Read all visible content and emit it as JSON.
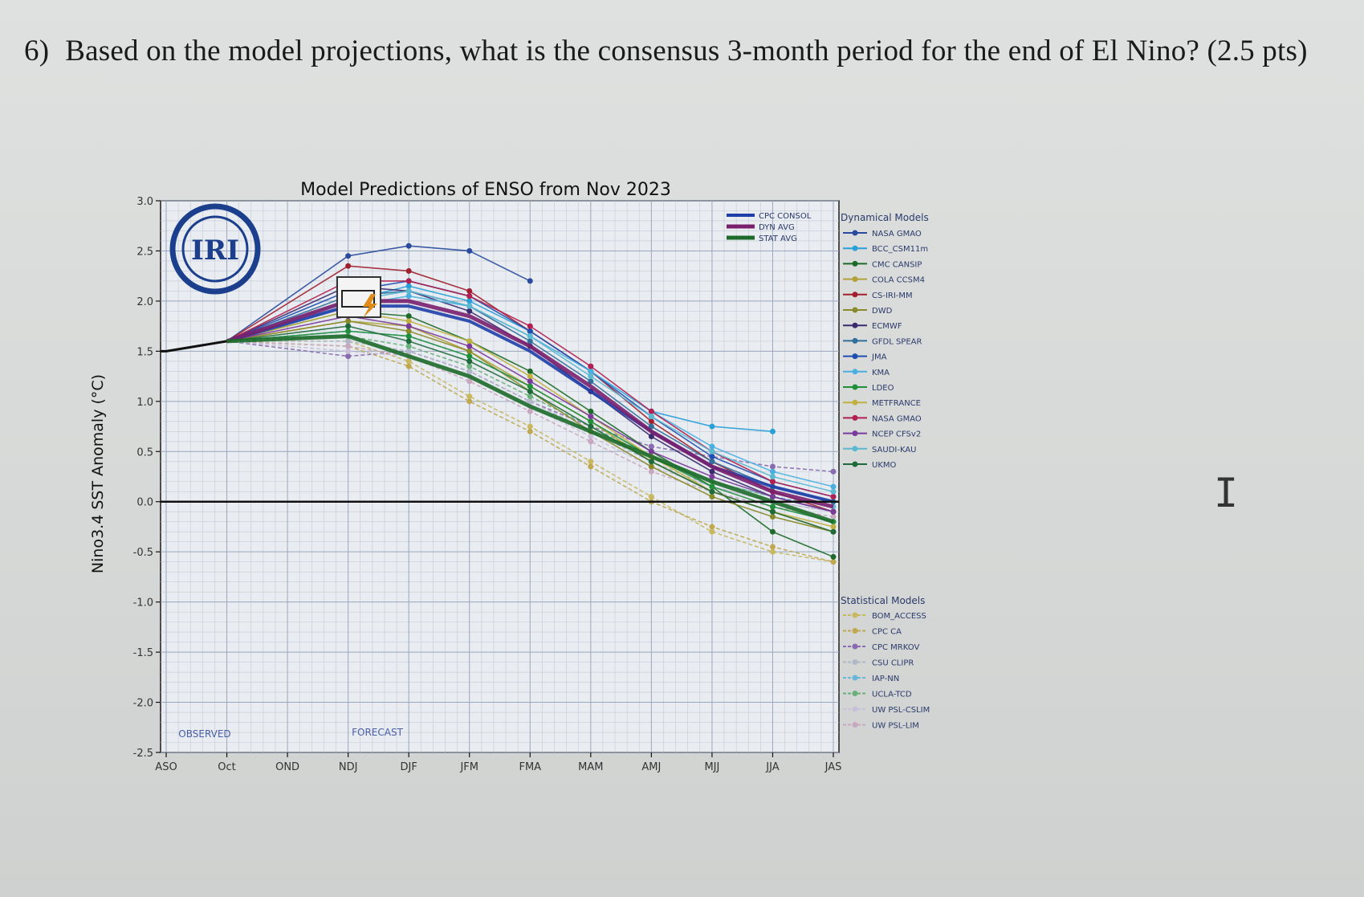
{
  "question": {
    "number": "6)",
    "text": "Based on the model projections, what is the consensus 3-month period for the end of El Nino? (2.5 pts)"
  },
  "chart_data": {
    "type": "line",
    "title": "Model Predictions of ENSO from Nov 2023",
    "ylabel": "Nino3.4 SST Anomaly (°C)",
    "xlabel": "",
    "ylim": [
      -2.5,
      3.0
    ],
    "yticks": [
      3.0,
      2.5,
      2.0,
      1.5,
      1.0,
      0.5,
      0.0,
      -0.5,
      -1.0,
      -1.5,
      -2.0,
      -2.5
    ],
    "ytick_labels": [
      "3.0",
      "2.5",
      "2.0",
      "1.5",
      "1.0",
      "0.5",
      "0.0",
      "-0.5",
      "-1.0",
      "-1.5",
      "-2.0",
      "-2.5"
    ],
    "categories": [
      "ASO",
      "Oct",
      "OND",
      "NDJ",
      "DJF",
      "JFM",
      "FMA",
      "MAM",
      "AMJ",
      "MJJ",
      "JJA",
      "JAS"
    ],
    "logo_text": "IRI",
    "observed_label": "OBSERVED",
    "forecast_label": "FORECAST",
    "grid": true,
    "legend_placement": "right",
    "observed": {
      "x": [
        "ASO",
        "Oct"
      ],
      "values": [
        1.5,
        1.6
      ]
    },
    "averages": [
      {
        "name": "CPC CONSOL",
        "color": "#1f3fa8",
        "width": 4,
        "values": [
          null,
          null,
          null,
          1.95,
          1.95,
          1.8,
          1.5,
          1.1,
          0.7,
          0.35,
          0.15,
          0.0
        ]
      },
      {
        "name": "DYN AVG",
        "color": "#7a1f6e",
        "width": 5,
        "values": [
          null,
          null,
          null,
          2.0,
          2.0,
          1.85,
          1.55,
          1.15,
          0.7,
          0.35,
          0.1,
          -0.05
        ]
      },
      {
        "name": "STAT AVG",
        "color": "#1d6b2a",
        "width": 5,
        "values": [
          null,
          null,
          null,
          1.65,
          1.45,
          1.25,
          0.95,
          0.7,
          0.45,
          0.2,
          0.0,
          -0.2
        ]
      }
    ],
    "dynamical_title": "Dynamical Models",
    "dynamical_models": [
      {
        "name": "NASA GMAO",
        "color": "#2a4a9e",
        "values": [
          null,
          null,
          null,
          2.45,
          2.55,
          2.5,
          2.2,
          null,
          null,
          null,
          null,
          null
        ]
      },
      {
        "name": "BCC_CSM11m",
        "color": "#2aa0d8",
        "values": [
          null,
          null,
          null,
          2.0,
          2.15,
          2.0,
          1.7,
          1.3,
          0.9,
          0.75,
          0.7,
          null
        ]
      },
      {
        "name": "CMC CANSIP",
        "color": "#1d6b2a",
        "values": [
          null,
          null,
          null,
          1.9,
          1.85,
          1.6,
          1.3,
          0.9,
          0.5,
          0.15,
          -0.3,
          -0.55
        ]
      },
      {
        "name": "COLA CCSM4",
        "color": "#b3a13a",
        "values": [
          null,
          null,
          null,
          1.8,
          1.75,
          1.5,
          1.15,
          0.8,
          0.4,
          0.1,
          -0.1,
          -0.3
        ]
      },
      {
        "name": "CS-IRI-MM",
        "color": "#a02030",
        "values": [
          null,
          null,
          null,
          2.35,
          2.3,
          2.1,
          1.7,
          1.3,
          0.8,
          0.4,
          0.1,
          -0.1
        ]
      },
      {
        "name": "DWD",
        "color": "#8a8a2a",
        "values": [
          null,
          null,
          null,
          1.8,
          1.7,
          1.5,
          1.1,
          0.7,
          0.35,
          0.05,
          -0.15,
          -0.3
        ]
      },
      {
        "name": "ECMWF",
        "color": "#3a2a6e",
        "values": [
          null,
          null,
          null,
          2.15,
          2.1,
          1.9,
          1.55,
          1.1,
          0.65,
          0.3,
          0.05,
          -0.1
        ]
      },
      {
        "name": "GFDL SPEAR",
        "color": "#2f6f9a",
        "values": [
          null,
          null,
          null,
          2.05,
          2.1,
          1.95,
          1.6,
          1.2,
          0.75,
          0.4,
          0.15,
          0.0
        ]
      },
      {
        "name": "JMA",
        "color": "#1f4fb0",
        "values": [
          null,
          null,
          null,
          2.1,
          2.2,
          2.05,
          1.7,
          1.3,
          0.85,
          0.45,
          0.2,
          0.05
        ]
      },
      {
        "name": "KMA",
        "color": "#4ab0e0",
        "values": [
          null,
          null,
          null,
          1.95,
          2.05,
          1.95,
          1.65,
          1.3,
          0.9,
          0.55,
          0.3,
          0.15
        ]
      },
      {
        "name": "LDEO",
        "color": "#1f8f3a",
        "values": [
          null,
          null,
          null,
          1.7,
          1.65,
          1.45,
          1.15,
          0.8,
          0.45,
          0.15,
          -0.05,
          -0.2
        ]
      },
      {
        "name": "METFRANCE",
        "color": "#c0b040",
        "values": [
          null,
          null,
          null,
          1.9,
          1.8,
          1.6,
          1.25,
          0.85,
          0.45,
          0.1,
          -0.1,
          -0.25
        ]
      },
      {
        "name": "NASA GMAO",
        "color": "#b02050",
        "values": [
          null,
          null,
          null,
          2.2,
          2.2,
          2.05,
          1.75,
          1.35,
          0.9,
          0.5,
          0.2,
          0.05
        ]
      },
      {
        "name": "NCEP CFSv2",
        "color": "#7a3a9a",
        "values": [
          null,
          null,
          null,
          1.85,
          1.75,
          1.55,
          1.2,
          0.85,
          0.5,
          0.25,
          0.05,
          -0.1
        ]
      },
      {
        "name": "SAUDI-KAU",
        "color": "#5ab8d0",
        "values": [
          null,
          null,
          null,
          2.0,
          2.1,
          1.95,
          1.65,
          1.25,
          0.85,
          0.5,
          0.25,
          0.1
        ]
      },
      {
        "name": "UKMO",
        "color": "#1f6a3a",
        "values": [
          null,
          null,
          null,
          1.75,
          1.6,
          1.4,
          1.1,
          0.75,
          0.4,
          0.1,
          -0.1,
          -0.3
        ]
      }
    ],
    "statistical_title": "Statistical Models",
    "statistical_models": [
      {
        "name": "BOM_ACCESS",
        "color": "#c8b860",
        "values": [
          null,
          null,
          null,
          1.6,
          1.4,
          1.05,
          0.75,
          0.4,
          0.05,
          -0.3,
          -0.5,
          -0.6
        ]
      },
      {
        "name": "CPC CA",
        "color": "#c0a850",
        "values": [
          null,
          null,
          null,
          1.55,
          1.35,
          1.0,
          0.7,
          0.35,
          0.0,
          -0.25,
          -0.45,
          -0.6
        ]
      },
      {
        "name": "CPC MRKOV",
        "color": "#8a6ab0",
        "values": [
          null,
          null,
          null,
          1.45,
          1.5,
          1.3,
          1.0,
          0.75,
          0.55,
          0.45,
          0.35,
          0.3
        ]
      },
      {
        "name": "CSU CLIPR",
        "color": "#b0b8c8",
        "values": [
          null,
          null,
          null,
          1.6,
          1.5,
          1.3,
          1.0,
          0.7,
          0.4,
          0.15,
          0.0,
          -0.1
        ]
      },
      {
        "name": "IAP-NN",
        "color": "#6ab8d8",
        "values": [
          null,
          null,
          null,
          1.7,
          1.65,
          1.45,
          1.15,
          0.8,
          0.45,
          0.2,
          0.05,
          -0.05
        ]
      },
      {
        "name": "UCLA-TCD",
        "color": "#6ab07a",
        "values": [
          null,
          null,
          null,
          1.65,
          1.55,
          1.35,
          1.05,
          0.75,
          0.45,
          0.2,
          0.05,
          -0.1
        ]
      },
      {
        "name": "UW PSL-CSLIM",
        "color": "#c8c0d8",
        "values": [
          null,
          null,
          null,
          1.5,
          1.45,
          1.25,
          0.95,
          0.65,
          0.35,
          0.15,
          0.0,
          -0.1
        ]
      },
      {
        "name": "UW PSL-LIM",
        "color": "#c8a8c0",
        "values": [
          null,
          null,
          null,
          1.55,
          1.45,
          1.2,
          0.9,
          0.6,
          0.3,
          0.1,
          -0.05,
          -0.15
        ]
      }
    ]
  }
}
